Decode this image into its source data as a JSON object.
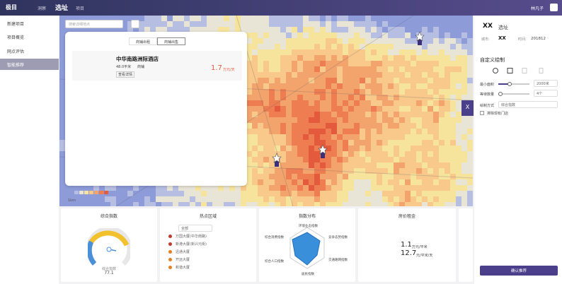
{
  "header": {
    "logo": "极目",
    "nav": [
      "洞察",
      "选址",
      "项目"
    ],
    "user": "林凡子"
  },
  "sidebar": {
    "items": [
      "新建项目",
      "项目概览",
      "网点评估",
      "智能推荐"
    ]
  },
  "map": {
    "search_placeholder": "搜索详细地点",
    "scale": "1km"
  },
  "listing": {
    "tabs": [
      "商铺出租",
      "商铺出售"
    ],
    "name": "中华南路洲际酒店",
    "area": "48.0平米",
    "kind": "商铺",
    "detail": "查看详情",
    "price": "1.7",
    "price_unit": "万元/天"
  },
  "panel": {
    "title_mask": "XX",
    "title": "选址",
    "city_label": "城市:",
    "city": "XX",
    "time_label": "时间:",
    "time": "201812",
    "section": "自定义绘制",
    "fields": [
      {
        "label": "最小面积",
        "value": "2000米"
      },
      {
        "label": "等待数量",
        "value": "4个"
      },
      {
        "label": "绘制方式",
        "value": "综合指数"
      }
    ],
    "checkbox": "排除现有门店",
    "submit": "确认推荐",
    "close": "X"
  },
  "cards": {
    "index": {
      "title": "综合指数",
      "label": "综合指数",
      "value": "77.1"
    },
    "hot": {
      "title": "热点区域",
      "filter": "全部",
      "items": [
        "万国大厦(中华南路)",
        "新港大厦(新兴元街)",
        "迅通大厦",
        "开远大厦",
        "和谐大厦"
      ]
    },
    "radar": {
      "title": "指数分布",
      "axes": [
        "环境业态指数",
        "竞争态势指数",
        "交通路网指数",
        "居民指数",
        "综合人口指数",
        "综合消费指数"
      ]
    },
    "rent": {
      "title": "房价租金",
      "price": "1.1",
      "price_unit": "万元/平米",
      "rent": "12.7",
      "rent_unit": "元/平米/天"
    }
  }
}
